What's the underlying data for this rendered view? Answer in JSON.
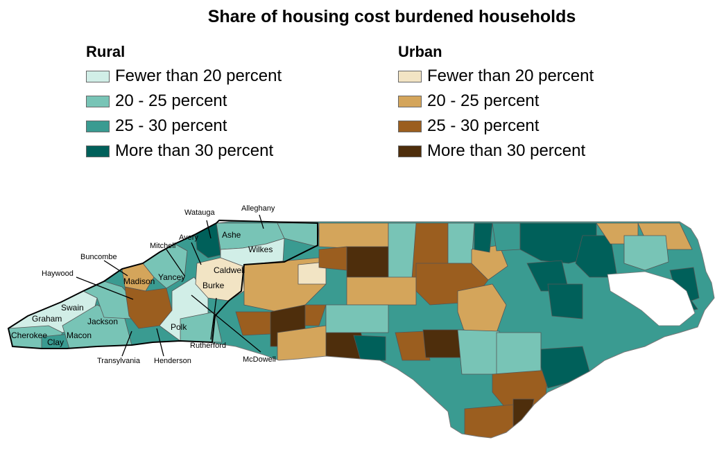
{
  "title": "Share of housing cost burdened households",
  "legend": {
    "rural": {
      "title": "Rural",
      "items": [
        {
          "label": "Fewer than 20 percent",
          "color": "#d1eee7"
        },
        {
          "label": "20 - 25 percent",
          "color": "#78c4b6"
        },
        {
          "label": "25 - 30 percent",
          "color": "#3a9b91"
        },
        {
          "label": "More than 30 percent",
          "color": "#00605a"
        }
      ]
    },
    "urban": {
      "title": "Urban",
      "items": [
        {
          "label": "Fewer than 20 percent",
          "color": "#f2e4c4"
        },
        {
          "label": "20 - 25 percent",
          "color": "#d4a55b"
        },
        {
          "label": "25 - 30 percent",
          "color": "#9b5e1f"
        },
        {
          "label": "More than 30 percent",
          "color": "#4e2e0c"
        }
      ]
    }
  },
  "counties_in_map": [
    "Ashe",
    "Wilkes",
    "Caldwell",
    "Burke",
    "Yancey",
    "Madison",
    "Swain",
    "Graham",
    "Jackson",
    "Cherokee",
    "Macon",
    "Clay",
    "Polk"
  ],
  "callouts": [
    "Watauga",
    "Alleghany",
    "Avery",
    "Mitchell",
    "Buncombe",
    "Haywood",
    "Transylvania",
    "Henderson",
    "Rutherford",
    "McDowell"
  ],
  "colors": {
    "water": "#ffffff",
    "county_border": "#555555",
    "region_outline": "#000000"
  }
}
